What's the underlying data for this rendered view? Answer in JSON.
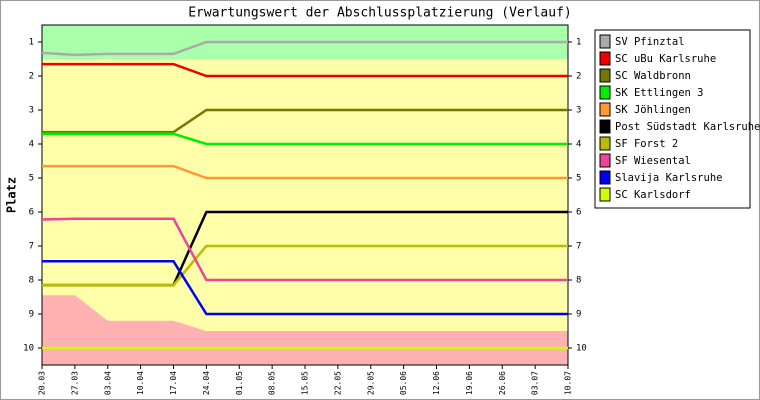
{
  "chart_data": {
    "type": "line",
    "title": "Erwartungswert der Abschlussplatzierung (Verlauf)",
    "y_label": "Platz",
    "categories": [
      "20.03",
      "27.03",
      "03.04",
      "10.04",
      "17.04",
      "24.04",
      "01.05",
      "08.05",
      "15.05",
      "22.05",
      "29.05",
      "05.06",
      "12.06",
      "19.06",
      "26.06",
      "03.07",
      "10.07"
    ],
    "ylim": [
      0.5,
      10.5
    ],
    "y_reversed": true,
    "yticks": [
      1,
      2,
      3,
      4,
      5,
      6,
      7,
      8,
      9,
      10
    ],
    "zones": [
      {
        "from": 0.5,
        "to": 1.5,
        "color": "#aaffaa"
      },
      {
        "from": 1.5,
        "to": 10.5,
        "color": "#ffffaa"
      }
    ],
    "area": {
      "color": "#ffb0b0",
      "values": [
        8.45,
        8.45,
        9.2,
        9.2,
        9.2,
        9.5,
        9.5,
        9.5,
        9.5,
        9.5,
        9.5,
        9.5,
        9.5,
        9.5,
        9.5,
        9.5,
        9.5
      ]
    },
    "series": [
      {
        "name": "SV Pfinztal",
        "color": "#aaaaaa",
        "values": [
          1.32,
          1.38,
          1.35,
          1.35,
          1.35,
          1,
          1,
          1,
          1,
          1,
          1,
          1,
          1,
          1,
          1,
          1,
          1
        ]
      },
      {
        "name": "SC uBu Karlsruhe",
        "color": "#ee0000",
        "values": [
          1.65,
          1.65,
          1.65,
          1.65,
          1.65,
          2,
          2,
          2,
          2,
          2,
          2,
          2,
          2,
          2,
          2,
          2,
          2
        ]
      },
      {
        "name": "SC Waldbronn",
        "color": "#777700",
        "values": [
          3.65,
          3.65,
          3.65,
          3.65,
          3.65,
          3,
          3,
          3,
          3,
          3,
          3,
          3,
          3,
          3,
          3,
          3,
          3
        ]
      },
      {
        "name": "SK Ettlingen 3",
        "color": "#00ee00",
        "values": [
          3.7,
          3.7,
          3.7,
          3.7,
          3.7,
          4,
          4,
          4,
          4,
          4,
          4,
          4,
          4,
          4,
          4,
          4,
          4
        ]
      },
      {
        "name": "SK Jöhlingen",
        "color": "#ff9933",
        "values": [
          4.65,
          4.65,
          4.65,
          4.65,
          4.65,
          5,
          5,
          5,
          5,
          5,
          5,
          5,
          5,
          5,
          5,
          5,
          5
        ]
      },
      {
        "name": "Post Südstadt Karlsruhe",
        "color": "#000000",
        "values": [
          8.15,
          8.15,
          8.15,
          8.15,
          8.15,
          6,
          6,
          6,
          6,
          6,
          6,
          6,
          6,
          6,
          6,
          6,
          6
        ]
      },
      {
        "name": "SF Forst 2",
        "color": "#bbbb00",
        "values": [
          8.15,
          8.15,
          8.15,
          8.15,
          8.15,
          7,
          7,
          7,
          7,
          7,
          7,
          7,
          7,
          7,
          7,
          7,
          7
        ]
      },
      {
        "name": "SF Wiesental",
        "color": "#ee4499",
        "values": [
          6.22,
          6.2,
          6.2,
          6.2,
          6.2,
          8,
          8,
          8,
          8,
          8,
          8,
          8,
          8,
          8,
          8,
          8,
          8
        ]
      },
      {
        "name": "Slavija Karlsruhe",
        "color": "#0000ee",
        "values": [
          7.45,
          7.45,
          7.45,
          7.45,
          7.45,
          9,
          9,
          9,
          9,
          9,
          9,
          9,
          9,
          9,
          9,
          9,
          9
        ]
      },
      {
        "name": "SC Karlsdorf",
        "color": "#ccff00",
        "values": [
          10,
          10,
          10,
          10,
          10,
          10,
          10,
          10,
          10,
          10,
          10,
          10,
          10,
          10,
          10,
          10,
          10
        ]
      }
    ]
  }
}
